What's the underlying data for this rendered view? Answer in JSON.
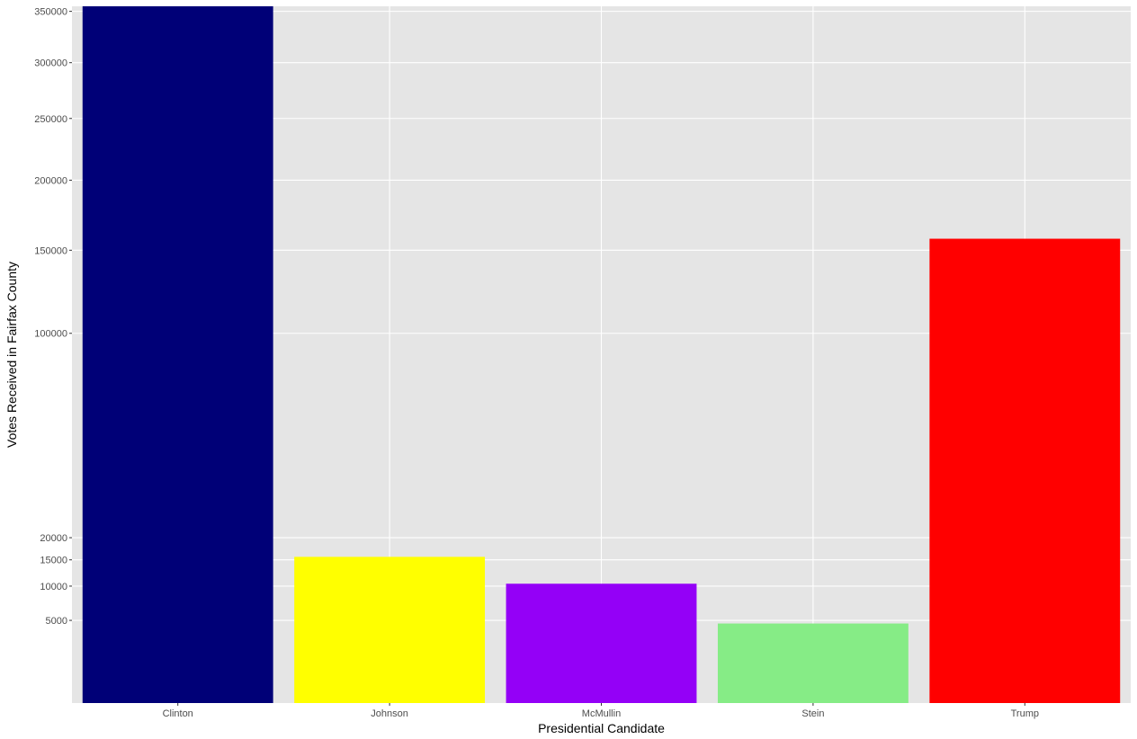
{
  "chart_data": {
    "type": "bar",
    "categories": [
      "Clinton",
      "Johnson",
      "McMullin",
      "Stein",
      "Trump"
    ],
    "values": [
      355133,
      15633,
      10415,
      4626,
      157710
    ],
    "colors": [
      "#000077",
      "#ffff00",
      "#9400f7",
      "#86ec86",
      "#ff0000"
    ],
    "xlabel": "Presidential Candidate",
    "ylabel": "Votes Received in Fairfax County",
    "ylim": [
      0,
      355133
    ],
    "yticks": [
      5000,
      10000,
      15000,
      20000,
      100000,
      150000,
      200000,
      250000,
      300000,
      350000
    ],
    "ytick_labels": [
      "5000",
      "10000",
      "15000",
      "20000",
      "100000",
      "150000",
      "200000",
      "250000",
      "300000",
      "350000"
    ],
    "grid": true,
    "panel_background": "#e5e5e5",
    "gridline_color": "#ffffff",
    "legend": "none"
  }
}
